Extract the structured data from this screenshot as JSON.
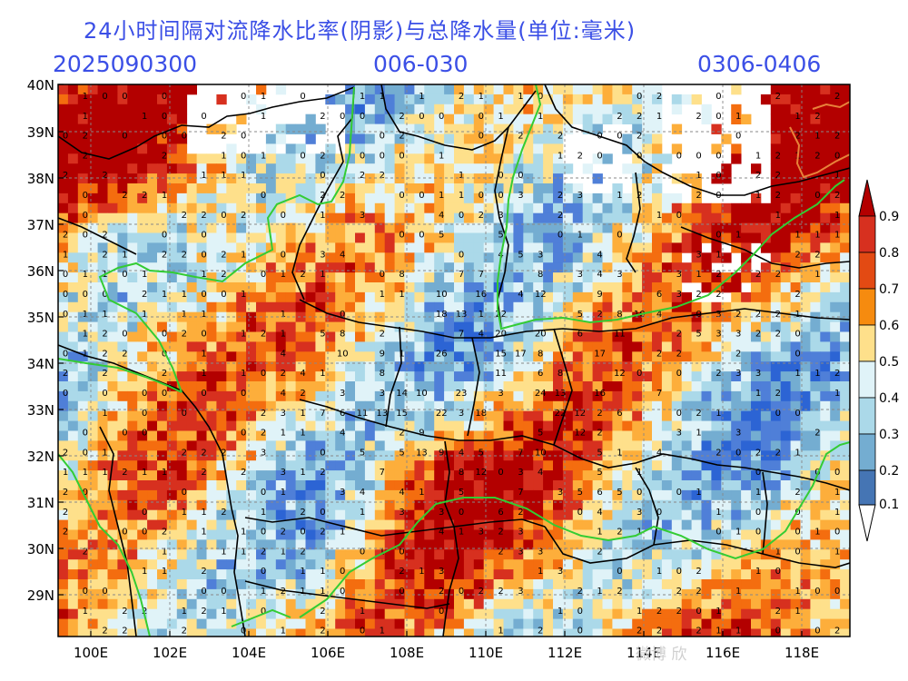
{
  "header": {
    "title": "24小时间隔对流降水比率(阴影)与总降水量(单位:毫米)",
    "run_time": "2025090300",
    "forecast_hours": "006-030",
    "valid_period": "0306-0406"
  },
  "map": {
    "lat_labels": [
      "40N",
      "39N",
      "38N",
      "37N",
      "36N",
      "35N",
      "34N",
      "33N",
      "32N",
      "31N",
      "30N",
      "29N"
    ],
    "lon_labels": [
      "100E",
      "102E",
      "104E",
      "106E",
      "108E",
      "110E",
      "112E",
      "114E",
      "116E",
      "118E"
    ],
    "colorbar": {
      "levels": [
        "0.9",
        "0.8",
        "0.7",
        "0.6",
        "0.5",
        "0.4",
        "0.3",
        "0.2",
        "0.1"
      ],
      "colors": [
        "#b30000",
        "#d7301f",
        "#f46d0f",
        "#fdae3b",
        "#fee08b",
        "#e0f3f8",
        "#abd9e9",
        "#74add1",
        "#4575b4",
        "#2c64d4"
      ]
    },
    "colors": {
      "province_border": "#000000",
      "basin_line": "#33cc33",
      "grid": "#888888",
      "orange_border": "#e8823a"
    }
  },
  "watermark": "微博 欣"
}
